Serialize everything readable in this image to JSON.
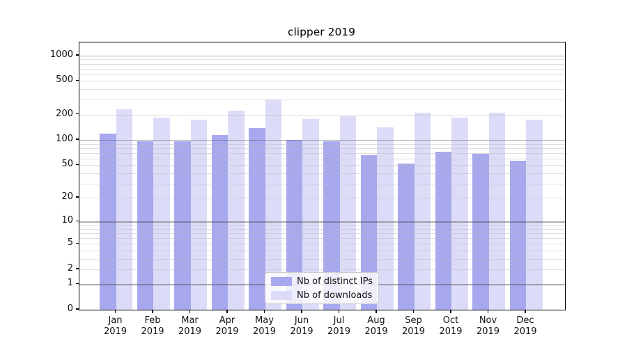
{
  "title": "clipper 2019",
  "chart_data": {
    "type": "bar",
    "title": "clipper 2019",
    "categories": [
      "Jan",
      "Feb",
      "Mar",
      "Apr",
      "May",
      "Jun",
      "Jul",
      "Aug",
      "Sep",
      "Oct",
      "Nov",
      "Dec"
    ],
    "year_label": "2019",
    "series": [
      {
        "name": "Nb of distinct IPs",
        "color": "#a8a8ef",
        "values": [
          118,
          97,
          96,
          115,
          139,
          101,
          97,
          66,
          52,
          72,
          68,
          56
        ]
      },
      {
        "name": "Nb of downloads",
        "color": "#dcdcf8",
        "values": [
          233,
          186,
          174,
          221,
          300,
          178,
          193,
          140,
          209,
          183,
          211,
          173
        ]
      }
    ],
    "yticks": [
      0,
      1,
      2,
      5,
      10,
      20,
      50,
      100,
      200,
      500,
      1000
    ],
    "scale": "log(1+v), zero at baseline",
    "ylim": [
      0,
      1400
    ],
    "grid": "on",
    "grid_major_at": [
      1,
      10,
      100,
      1000
    ],
    "legend_position": "lower center",
    "xlabel": "",
    "ylabel": ""
  },
  "colors": {
    "bar_distinct_ips": "#a8a8ef",
    "bar_downloads": "#dcdcf8",
    "grid_major": "#b0b0b0",
    "grid_minor": "#dedede",
    "axis": "#000000",
    "legend_border": "#cccccc",
    "legend_background": "rgba(255,255,255,0.8)"
  }
}
